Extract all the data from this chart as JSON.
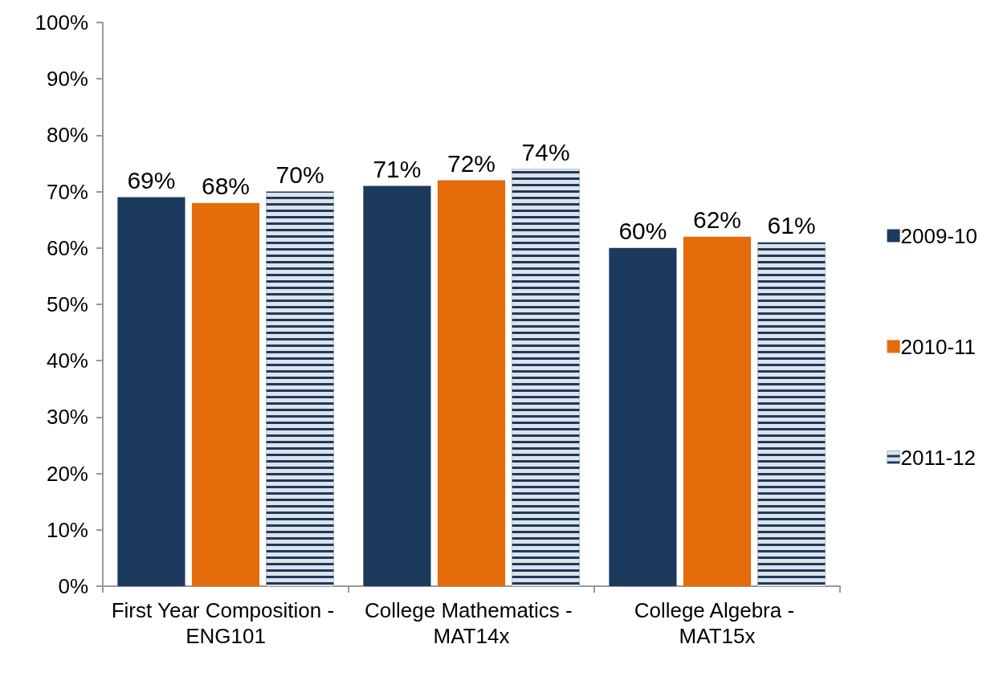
{
  "chart_data": {
    "type": "bar",
    "categories": [
      "First Year Composition - ENG101",
      "College Mathematics - MAT14x",
      "College Algebra - MAT15x"
    ],
    "series": [
      {
        "name": "2009-10",
        "color": "#1c3a5e",
        "values": [
          69,
          71,
          60
        ]
      },
      {
        "name": "2010-11",
        "color": "#e46c0a",
        "values": [
          68,
          72,
          62
        ]
      },
      {
        "name": "2011-12",
        "color": "#1c3a5e",
        "values": [
          70,
          74,
          61
        ]
      }
    ],
    "value_labels": [
      [
        "69%",
        "71%",
        "60%"
      ],
      [
        "68%",
        "72%",
        "62%"
      ],
      [
        "70%",
        "74%",
        "61%"
      ]
    ],
    "ylim": [
      0,
      100
    ],
    "yticks": [
      {
        "value": 0,
        "label": "0%"
      },
      {
        "value": 10,
        "label": "10%"
      },
      {
        "value": 20,
        "label": "20%"
      },
      {
        "value": 30,
        "label": "30%"
      },
      {
        "value": 40,
        "label": "40%"
      },
      {
        "value": 50,
        "label": "50%"
      },
      {
        "value": 60,
        "label": "60%"
      },
      {
        "value": 70,
        "label": "70%"
      },
      {
        "value": 80,
        "label": "80%"
      },
      {
        "value": 90,
        "label": "90%"
      },
      {
        "value": 100,
        "label": "100%"
      }
    ],
    "grid": false,
    "legend": "right"
  }
}
